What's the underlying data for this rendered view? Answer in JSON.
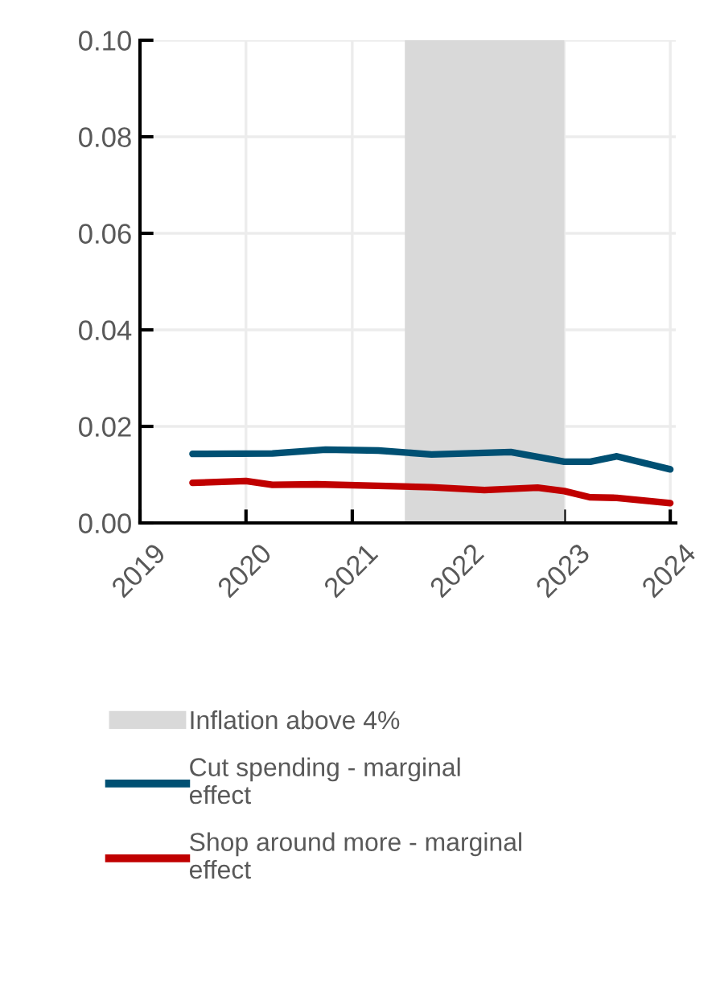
{
  "chart_data": {
    "type": "line",
    "xlim": [
      "2019-01-01",
      "2024-01-20"
    ],
    "xticks": [
      {
        "value": "2019-01-01",
        "label": "2019"
      },
      {
        "value": "2020-01-01",
        "label": "2020"
      },
      {
        "value": "2021-01-01",
        "label": "2021"
      },
      {
        "value": "2022-01-01",
        "label": "2022"
      },
      {
        "value": "2023-01-01",
        "label": "2023"
      },
      {
        "value": "2024-01-01",
        "label": "2024"
      }
    ],
    "ylim": [
      0,
      0.1
    ],
    "yticks": [
      {
        "value": 0,
        "label": "0.00"
      },
      {
        "value": 0.02,
        "label": "0.02"
      },
      {
        "value": 0.04,
        "label": "0.04"
      },
      {
        "value": 0.06,
        "label": "0.06"
      },
      {
        "value": 0.08,
        "label": "0.08"
      },
      {
        "value": 0.1,
        "label": "0.10"
      }
    ],
    "grid": true,
    "legend": "bottom",
    "line_style": "solid",
    "marker": "none",
    "bands": [
      {
        "axis": "x",
        "from": "2021-07",
        "to": "2023-01",
        "label": "Inflation above 4%",
        "color": "#d9d9d9"
      }
    ],
    "series": [
      {
        "name": "Cut spending - marginal\neffect",
        "color": "#005073",
        "x": [
          "2019-07",
          "2020-04",
          "2020-10",
          "2021-04",
          "2021-10",
          "2022-07",
          "2023-01",
          "2023-04",
          "2023-07",
          "2024-01"
        ],
        "values": [
          0.0143,
          0.0144,
          0.0152,
          0.015,
          0.0142,
          0.0147,
          0.0127,
          0.0127,
          0.0138,
          0.0111
        ]
      },
      {
        "name": "Shop around more - marginal\neffect",
        "color": "#c00000",
        "x": [
          "2019-07",
          "2020-01",
          "2020-04",
          "2020-09",
          "2021-04",
          "2021-10",
          "2022-04",
          "2022-10",
          "2023-01",
          "2023-04",
          "2023-07",
          "2024-01"
        ],
        "values": [
          0.0083,
          0.0087,
          0.0079,
          0.008,
          0.0077,
          0.0074,
          0.0068,
          0.0073,
          0.0066,
          0.0053,
          0.0052,
          0.0041
        ]
      }
    ]
  }
}
